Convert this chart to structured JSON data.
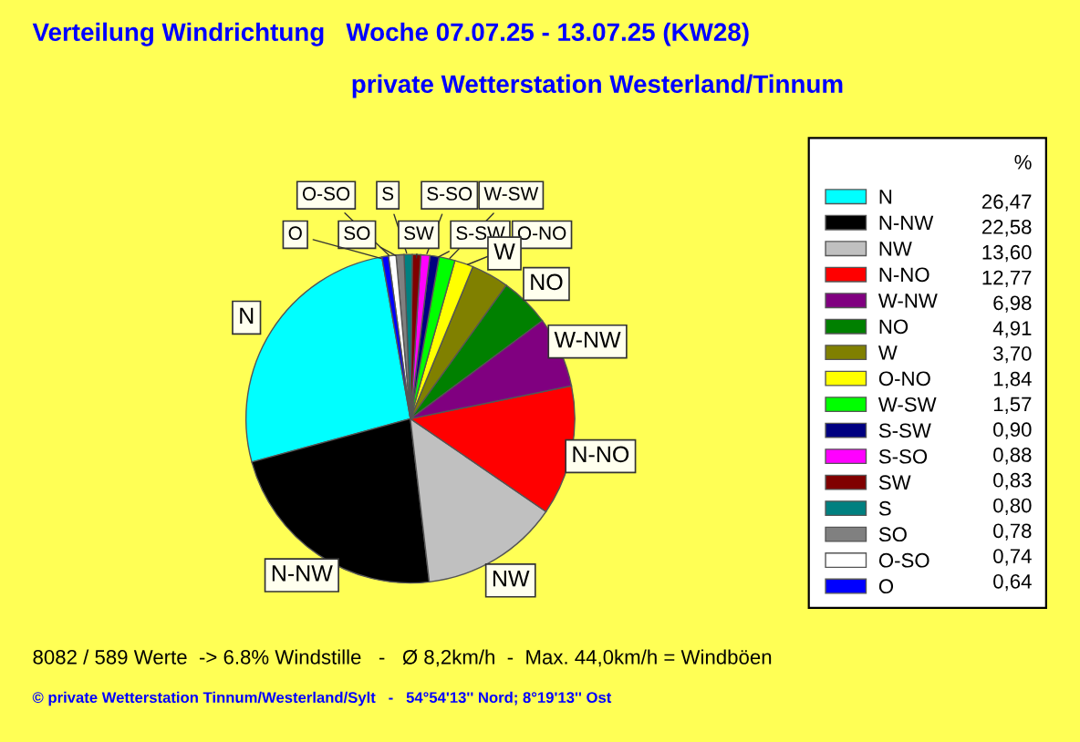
{
  "chart_data": {
    "type": "pie",
    "title": "Verteilung Windrichtung   Woche 07.07.25 - 13.07.25 (KW28)",
    "subtitle": "private Wetterstation Westerland/Tinnum",
    "legend_title": "%",
    "categories": [
      "N",
      "N-NW",
      "NW",
      "N-NO",
      "W-NW",
      "NO",
      "W",
      "O-NO",
      "W-SW",
      "S-SW",
      "S-SO",
      "SW",
      "S",
      "SO",
      "O-SO",
      "O"
    ],
    "values": [
      26.47,
      22.58,
      13.6,
      12.77,
      6.98,
      4.91,
      3.7,
      1.84,
      1.57,
      0.9,
      0.88,
      0.83,
      0.8,
      0.78,
      0.74,
      0.64
    ],
    "value_labels": [
      "26,47",
      "22,58",
      "13,60",
      "12,77",
      "6,98",
      "4,91",
      "3,70",
      "1,84",
      "1,57",
      "0,90",
      "0,88",
      "0,83",
      "0,80",
      "0,78",
      "0,74",
      "0,64"
    ],
    "colors": [
      "#00ffff",
      "#000000",
      "#c0c0c0",
      "#ff0000",
      "#800080",
      "#008000",
      "#808000",
      "#ffff00",
      "#00ff00",
      "#000080",
      "#ff00ff",
      "#800000",
      "#008080",
      "#808080",
      "#ffffff",
      "#0000ff"
    ],
    "legend": "right",
    "annotations": [
      "8082 / 589 Werte  -> 6.8% Windstille   -   Ø 8,2km/h  -  Max. 44,0km/h = Windböen",
      "© private Wetterstation Tinnum/Westerland/Sylt   -   54°54'13'' Nord; 8°19'13'' Ost"
    ]
  }
}
